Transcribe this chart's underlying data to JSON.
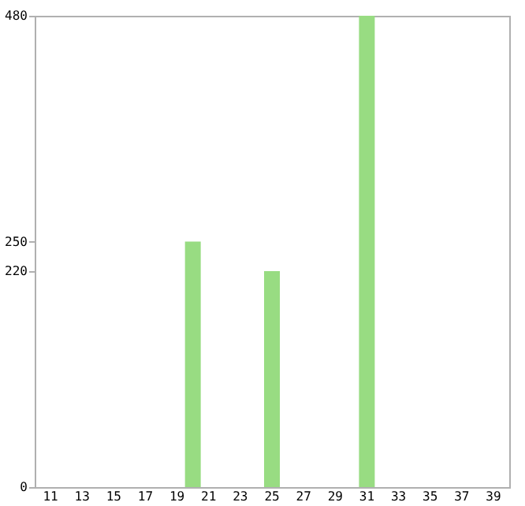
{
  "chart_data": {
    "type": "bar",
    "categories": [
      "11",
      null,
      "13",
      null,
      "15",
      null,
      "17",
      null,
      "19",
      null,
      "21",
      null,
      "23",
      null,
      "25",
      null,
      "27",
      null,
      "29",
      null,
      "31",
      null,
      "33",
      null,
      "35",
      null,
      "37",
      null,
      "39"
    ],
    "values": [
      null,
      null,
      null,
      null,
      null,
      null,
      null,
      null,
      null,
      250,
      null,
      null,
      null,
      null,
      220,
      null,
      null,
      null,
      null,
      null,
      480,
      null,
      null,
      null,
      null,
      null,
      null,
      null,
      null
    ],
    "color": "#98dc82",
    "ylim": [
      0,
      480
    ],
    "yticks": [
      0,
      220,
      250,
      480
    ],
    "grid": false
  }
}
